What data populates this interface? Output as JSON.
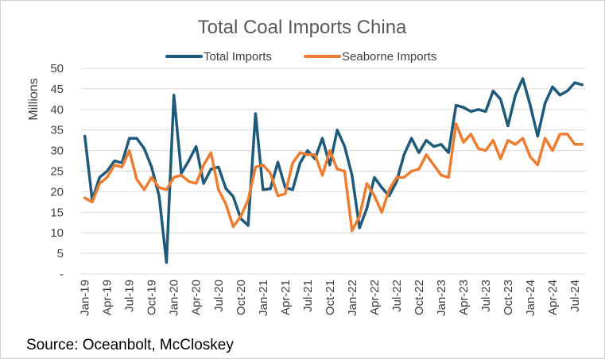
{
  "chart_data": {
    "type": "line",
    "title": "Total Coal Imports China",
    "ylabel": "Millions",
    "xlabel": "",
    "ylim": [
      0,
      50
    ],
    "yticks": [
      "-",
      "5",
      "10",
      "15",
      "20",
      "25",
      "30",
      "35",
      "40",
      "45",
      "50"
    ],
    "legend_position": "top",
    "grid": "horizontal",
    "x": [
      "Jan-19",
      "Feb-19",
      "Mar-19",
      "Apr-19",
      "May-19",
      "Jun-19",
      "Jul-19",
      "Aug-19",
      "Sep-19",
      "Oct-19",
      "Nov-19",
      "Dec-19",
      "Jan-20",
      "Feb-20",
      "Mar-20",
      "Apr-20",
      "May-20",
      "Jun-20",
      "Jul-20",
      "Aug-20",
      "Sep-20",
      "Oct-20",
      "Nov-20",
      "Dec-20",
      "Jan-21",
      "Feb-21",
      "Mar-21",
      "Apr-21",
      "May-21",
      "Jun-21",
      "Jul-21",
      "Aug-21",
      "Sep-21",
      "Oct-21",
      "Nov-21",
      "Dec-21",
      "Jan-22",
      "Feb-22",
      "Mar-22",
      "Apr-22",
      "May-22",
      "Jun-22",
      "Jul-22",
      "Aug-22",
      "Sep-22",
      "Oct-22",
      "Nov-22",
      "Dec-22",
      "Jan-23",
      "Feb-23",
      "Mar-23",
      "Apr-23",
      "May-23",
      "Jun-23",
      "Jul-23",
      "Aug-23",
      "Sep-23",
      "Oct-23",
      "Nov-23",
      "Dec-23",
      "Jan-24",
      "Feb-24",
      "Mar-24",
      "Apr-24",
      "May-24",
      "Jun-24",
      "Jul-24",
      "Aug-24"
    ],
    "x_tick_labels": [
      "Jan-19",
      "Apr-19",
      "Jul-19",
      "Oct-19",
      "Jan-20",
      "Apr-20",
      "Jul-20",
      "Oct-20",
      "Jan-21",
      "Apr-21",
      "Jul-21",
      "Oct-21",
      "Jan-22",
      "Apr-22",
      "Jul-22",
      "Oct-22",
      "Jan-23",
      "Apr-23",
      "Jul-23",
      "Oct-23",
      "Jan-24",
      "Apr-24",
      "Jul-24"
    ],
    "series": [
      {
        "name": "Total Imports",
        "color": "#1f5a7a",
        "values": [
          33.5,
          18,
          23.5,
          25,
          27.5,
          27,
          33,
          33,
          30.5,
          26,
          19,
          2.8,
          43.5,
          24.5,
          27.5,
          31,
          22,
          25.5,
          26,
          20.8,
          18.8,
          13.5,
          11.8,
          39,
          20.5,
          20.7,
          27.2,
          21,
          20.5,
          27,
          30,
          28,
          33,
          26.5,
          35,
          31,
          24,
          11.2,
          16,
          23.5,
          21,
          19,
          22.5,
          29,
          33,
          29.5,
          32.5,
          31,
          31.5,
          29.5,
          41,
          40.5,
          39.5,
          40,
          39.5,
          44.5,
          42.5,
          36,
          43.5,
          47.5,
          41,
          33.5,
          41.5,
          45.5,
          43.5,
          44.5,
          46.5,
          46
        ]
      },
      {
        "name": "Seaborne Imports",
        "color": "#ed7d31",
        "values": [
          18.5,
          17.5,
          22,
          23.5,
          26.5,
          26,
          30,
          23,
          20.5,
          23.5,
          21,
          20.5,
          23.5,
          24,
          22.5,
          22,
          26.5,
          29.5,
          20.5,
          17,
          11.5,
          14,
          18,
          26,
          26.5,
          24.5,
          19,
          19.5,
          27,
          29.5,
          29,
          29,
          24,
          30,
          25.5,
          25,
          10.5,
          14,
          22,
          19,
          15,
          20.5,
          23.5,
          23.5,
          25,
          25.5,
          29,
          26.5,
          24,
          23.5,
          36.5,
          32,
          34,
          30.5,
          30,
          32.5,
          28,
          32.5,
          31.5,
          33,
          28.5,
          26.5,
          33,
          30,
          34,
          34,
          31.5,
          31.5
        ]
      }
    ]
  },
  "source_text": "Source: Oceanbolt, McCloskey"
}
